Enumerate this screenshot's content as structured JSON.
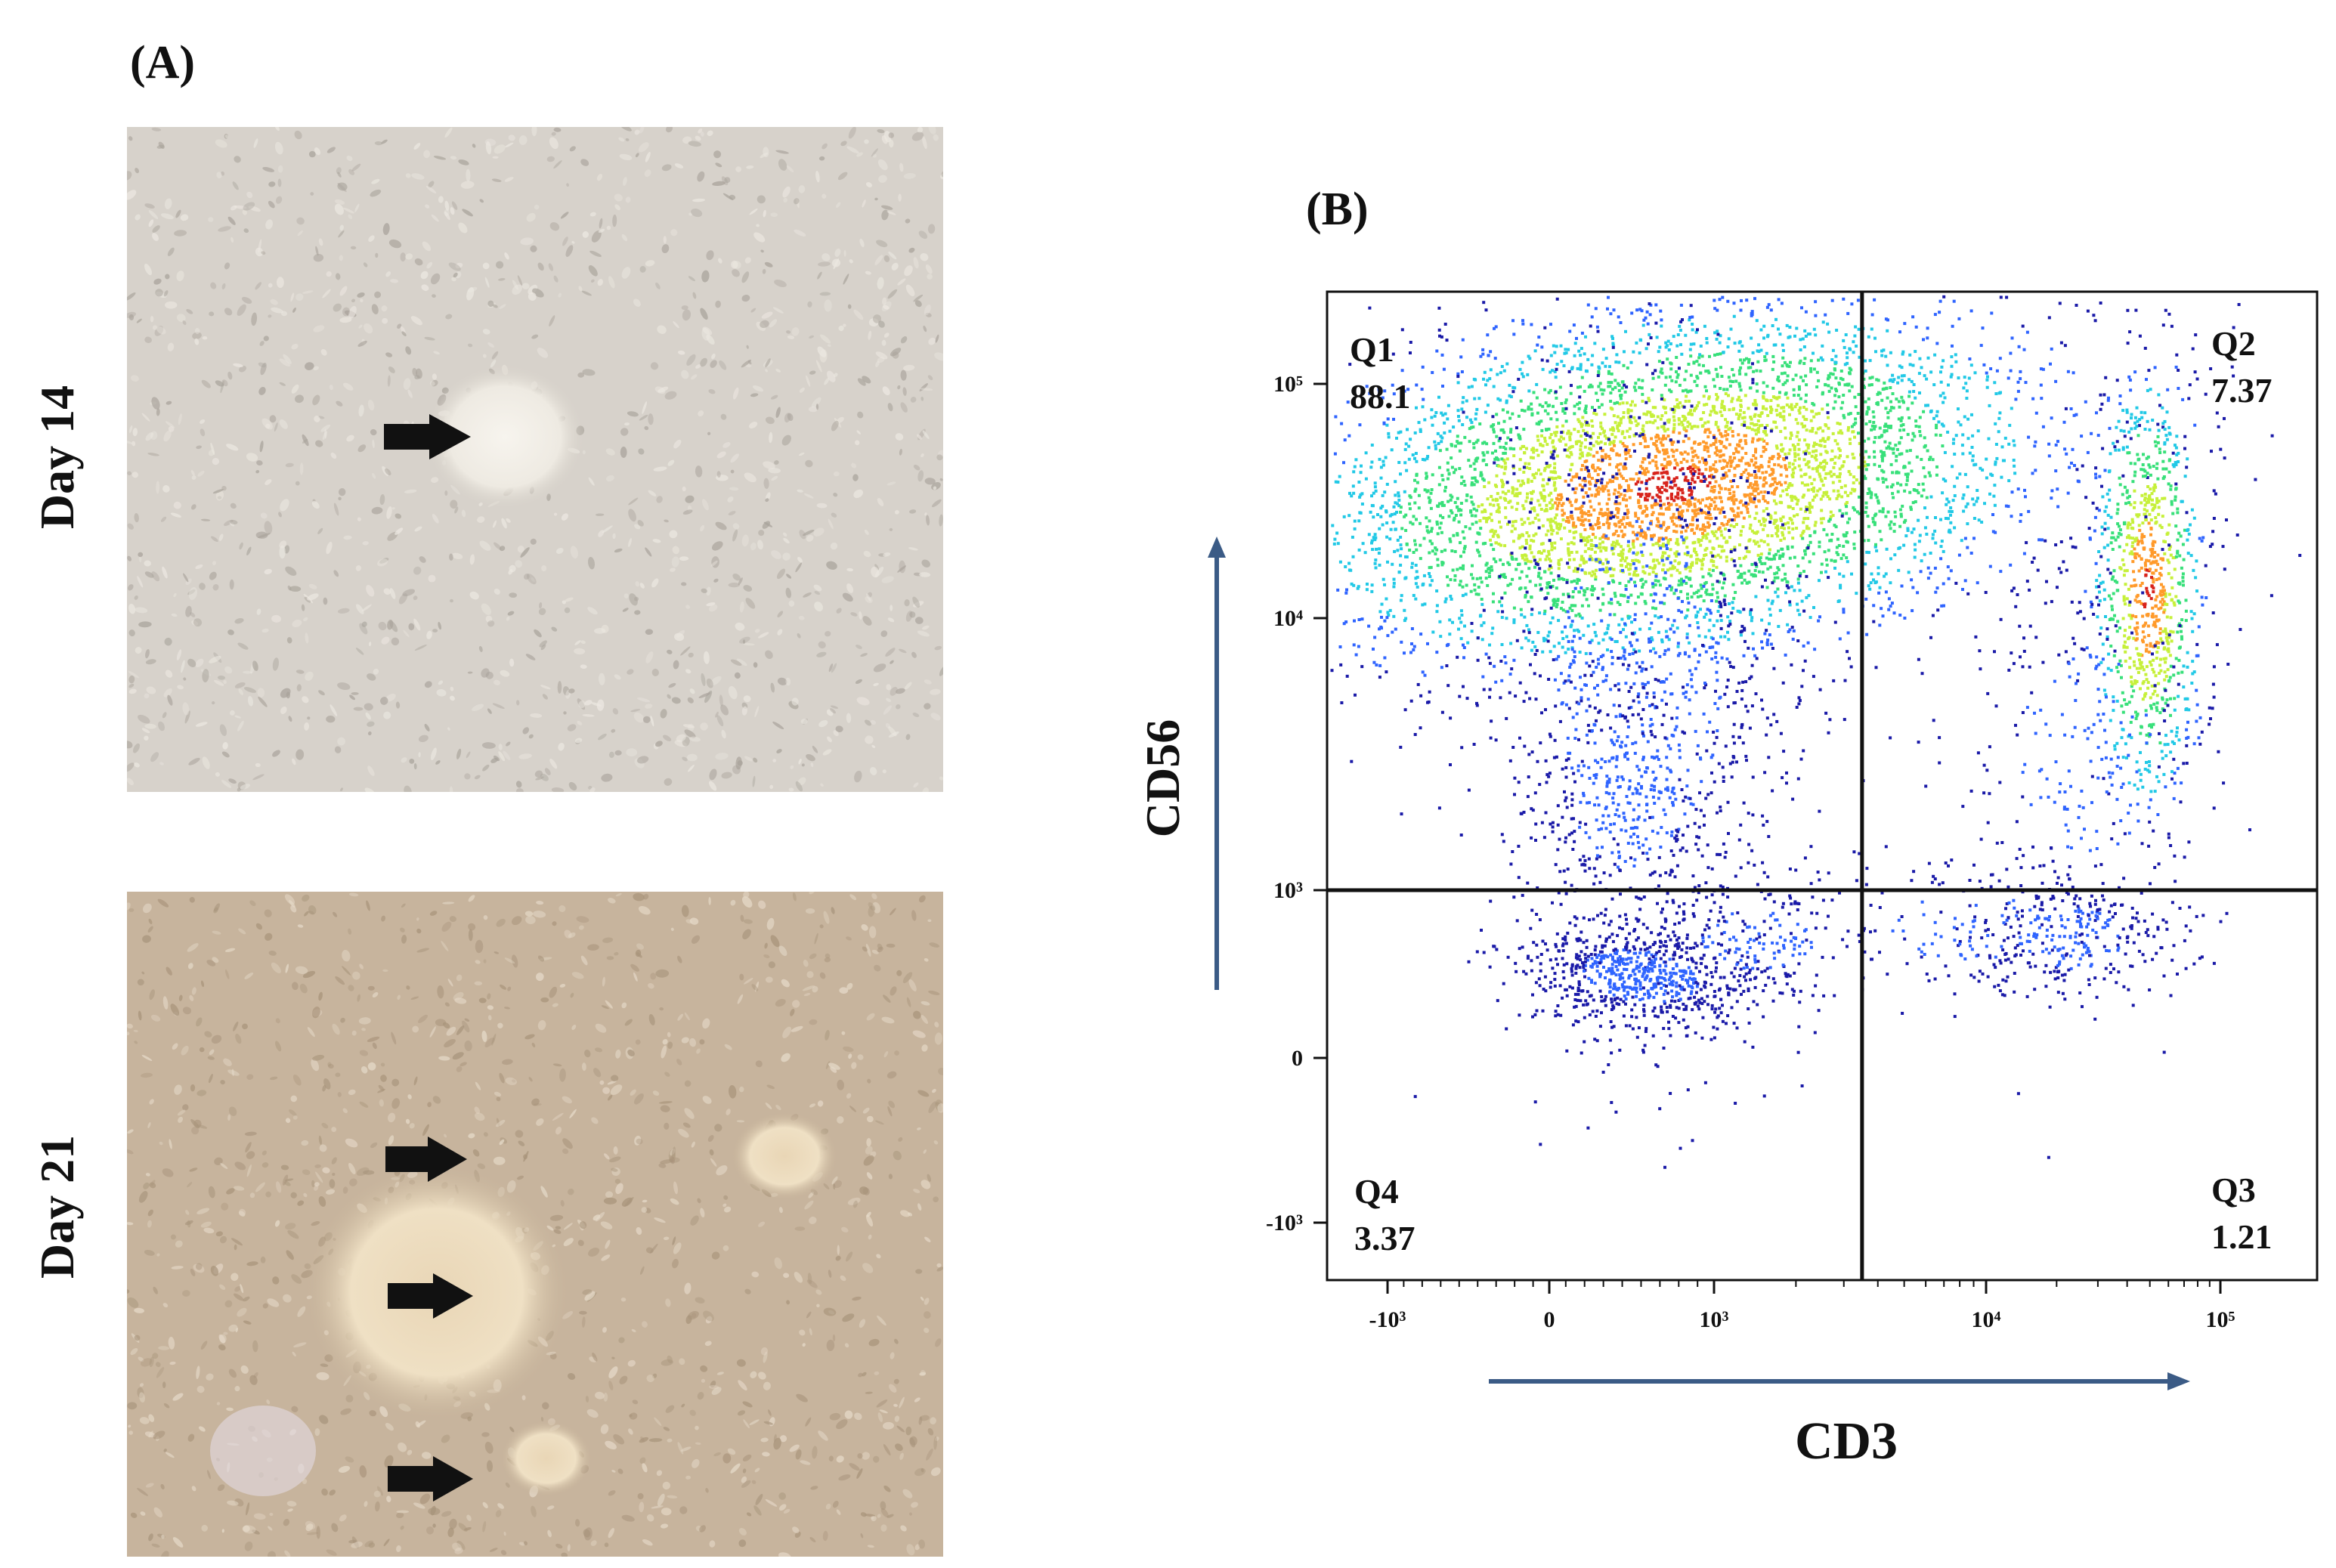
{
  "panel_a": {
    "label": "(A)",
    "images": [
      {
        "row_label": "Day 14",
        "arrow_count": 1
      },
      {
        "row_label": "Day 21",
        "arrow_count": 3
      }
    ]
  },
  "panel_b": {
    "label": "(B)",
    "chart_data": {
      "type": "scatter",
      "title": "",
      "xlabel": "CD3",
      "ylabel": "CD56",
      "x_scale": "biexponential",
      "y_scale": "biexponential",
      "x_ticks": [
        "-10³",
        "0",
        "10³",
        "10⁴",
        "10⁵"
      ],
      "y_ticks": [
        "10⁵",
        "10⁴",
        "10³",
        "0",
        "-10³"
      ],
      "gate_x": 3500,
      "gate_y": 1000,
      "quadrants": [
        {
          "name": "Q1",
          "value": "88.1"
        },
        {
          "name": "Q2",
          "value": "7.37"
        },
        {
          "name": "Q3",
          "value": "1.21"
        },
        {
          "name": "Q4",
          "value": "3.37"
        }
      ],
      "grid": false,
      "legend": "none",
      "density_colormap": [
        "#1a1aa8",
        "#2f64ff",
        "#22c9e6",
        "#38e07a",
        "#c6f03a",
        "#ff9a2a",
        "#d8241c"
      ]
    }
  }
}
